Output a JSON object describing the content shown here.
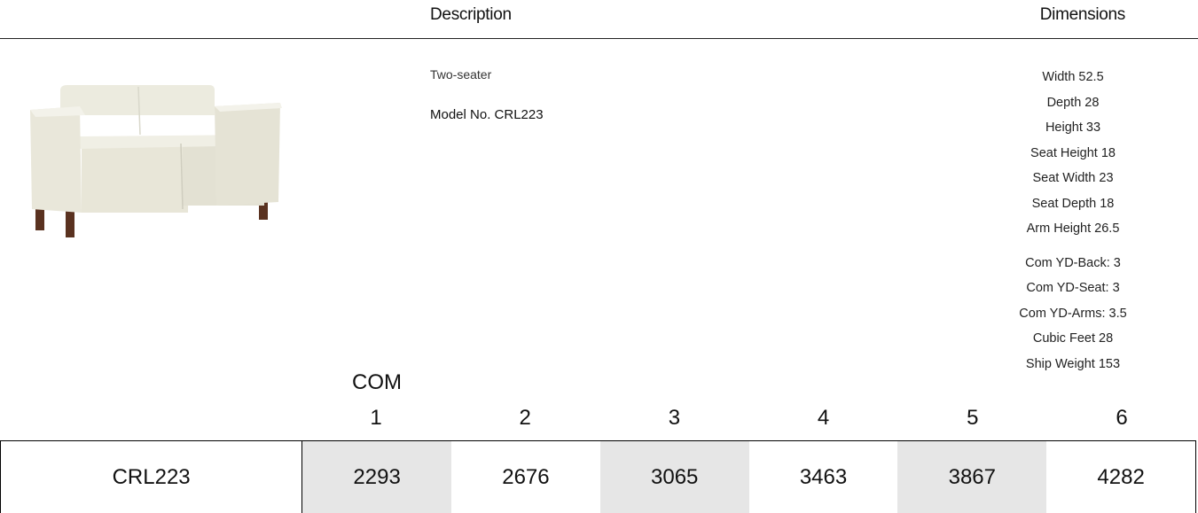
{
  "header": {
    "description": "Description",
    "dimensions": "Dimensions"
  },
  "product": {
    "name": "Two-seater",
    "model": "Model No. CRL223"
  },
  "dimensions": [
    [
      "Width 52.5",
      "Depth 28",
      "Height 33",
      "Seat Height 18",
      "Seat Width 23",
      "Seat Depth 18",
      "Arm Height 26.5"
    ],
    [
      "Com YD-Back: 3",
      "Com YD-Seat: 3",
      "Com YD-Arms: 3.5",
      "Cubic Feet 28",
      "Ship Weight 153"
    ]
  ],
  "grades": {
    "label": "COM",
    "columns": [
      "1",
      "2",
      "3",
      "4",
      "5",
      "6"
    ]
  },
  "table": {
    "rows": [
      [
        "CRL223",
        "2293",
        "2676",
        "3065",
        "3463",
        "3867",
        "4282"
      ]
    ]
  }
}
